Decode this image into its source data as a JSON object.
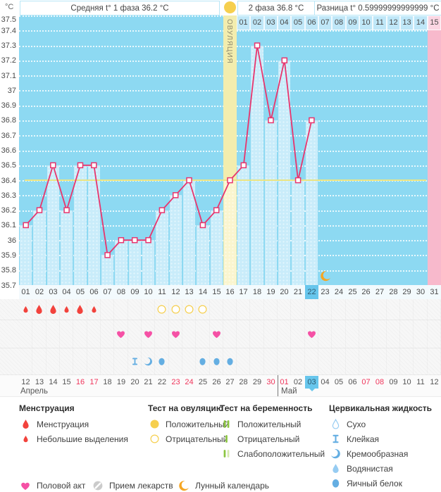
{
  "header": {
    "unit": "°C",
    "phase1_label": "Средняя t° 1 фаза 36.2 °C",
    "phase2_label": "2 фаза 36.8 °C",
    "diff_label": "Разница t° 0.59999999999999 °C"
  },
  "chart_data": {
    "type": "line",
    "ylabel_unit": "°C",
    "ylim": [
      35.7,
      37.5
    ],
    "ytick_step": 0.1,
    "yticks": [
      "37.5",
      "37.4",
      "37.3",
      "37.2",
      "37.1",
      "37",
      "36.9",
      "36.8",
      "36.7",
      "36.6",
      "36.5",
      "36.4",
      "36.3",
      "36.2",
      "36.1",
      "36",
      "35.9",
      "35.8",
      "35.7"
    ],
    "grid": "dotted-horizontal",
    "cycle_days": 31,
    "bottom_day_labels": [
      "01",
      "02",
      "03",
      "04",
      "05",
      "06",
      "07",
      "08",
      "09",
      "10",
      "11",
      "12",
      "13",
      "14",
      "15",
      "16",
      "17",
      "18",
      "19",
      "20",
      "21",
      "22",
      "23",
      "24",
      "25",
      "26",
      "27",
      "28",
      "29",
      "30",
      "31"
    ],
    "top_dpo_labels": [
      "01",
      "02",
      "03",
      "04",
      "05",
      "06",
      "07",
      "08",
      "09",
      "10",
      "11",
      "12",
      "13",
      "14",
      "15"
    ],
    "ovulation": {
      "day": 16,
      "label": "ОВУЛЯЦИЯ"
    },
    "coverline_temp": 36.4,
    "today_cycle_day": 22,
    "expected_period_cycle_day": 31,
    "moon_marker_day": 23,
    "temperatures": [
      {
        "day": 1,
        "temp": 36.1
      },
      {
        "day": 2,
        "temp": 36.2
      },
      {
        "day": 3,
        "temp": 36.5
      },
      {
        "day": 4,
        "temp": 36.2
      },
      {
        "day": 5,
        "temp": 36.5
      },
      {
        "day": 6,
        "temp": 36.5
      },
      {
        "day": 7,
        "temp": 35.9
      },
      {
        "day": 8,
        "temp": 36.0
      },
      {
        "day": 9,
        "temp": 36.0
      },
      {
        "day": 10,
        "temp": 36.0
      },
      {
        "day": 11,
        "temp": 36.2
      },
      {
        "day": 12,
        "temp": 36.3
      },
      {
        "day": 13,
        "temp": 36.4
      },
      {
        "day": 14,
        "temp": 36.1
      },
      {
        "day": 15,
        "temp": 36.2
      },
      {
        "day": 16,
        "temp": 36.4
      },
      {
        "day": 17,
        "temp": 36.5
      },
      {
        "day": 18,
        "temp": 37.3
      },
      {
        "day": 19,
        "temp": 36.8
      },
      {
        "day": 20,
        "temp": 37.2
      },
      {
        "day": 21,
        "temp": 36.4
      },
      {
        "day": 22,
        "temp": 36.8
      }
    ]
  },
  "events": {
    "menstruation": [
      {
        "day": 1,
        "intensity": "spotting"
      },
      {
        "day": 2,
        "intensity": "full"
      },
      {
        "day": 3,
        "intensity": "full"
      },
      {
        "day": 4,
        "intensity": "spotting"
      },
      {
        "day": 5,
        "intensity": "full"
      },
      {
        "day": 6,
        "intensity": "spotting"
      }
    ],
    "ovulation_test_negative_days": [
      11,
      12,
      13,
      14
    ],
    "ovulation_test_positive_day": 16,
    "intercourse_days": [
      8,
      10,
      12,
      15,
      22
    ],
    "cervical_fluid": [
      {
        "day": 9,
        "type": "sticky"
      },
      {
        "day": 10,
        "type": "creamy"
      },
      {
        "day": 11,
        "type": "eggwhite"
      },
      {
        "day": 14,
        "type": "eggwhite"
      },
      {
        "day": 15,
        "type": "eggwhite"
      },
      {
        "day": 16,
        "type": "eggwhite"
      }
    ]
  },
  "calendar": {
    "months": [
      {
        "name": "Апрель",
        "start_index": 0
      },
      {
        "name": "Май",
        "start_index": 19
      }
    ],
    "dates": [
      {
        "label": "12"
      },
      {
        "label": "13"
      },
      {
        "label": "14"
      },
      {
        "label": "15"
      },
      {
        "label": "16",
        "weekend": true
      },
      {
        "label": "17",
        "weekend": true
      },
      {
        "label": "18"
      },
      {
        "label": "19"
      },
      {
        "label": "20"
      },
      {
        "label": "21"
      },
      {
        "label": "22"
      },
      {
        "label": "23",
        "weekend": true
      },
      {
        "label": "24",
        "weekend": true
      },
      {
        "label": "25"
      },
      {
        "label": "26"
      },
      {
        "label": "27"
      },
      {
        "label": "28"
      },
      {
        "label": "29"
      },
      {
        "label": "30",
        "weekend": true
      },
      {
        "label": "01",
        "weekend": true
      },
      {
        "label": "02"
      },
      {
        "label": "03",
        "today": true
      },
      {
        "label": "04"
      },
      {
        "label": "05"
      },
      {
        "label": "06"
      },
      {
        "label": "07",
        "weekend": true
      },
      {
        "label": "08",
        "weekend": true
      },
      {
        "label": "09"
      },
      {
        "label": "10"
      },
      {
        "label": "11"
      },
      {
        "label": "12"
      }
    ]
  },
  "legend": {
    "menstruation": {
      "title": "Менструация",
      "items": [
        {
          "icon": "drop-large",
          "label": "Менструация"
        },
        {
          "icon": "drop-small",
          "label": "Небольшие выделения"
        }
      ]
    },
    "ovulation_test": {
      "title": "Тест на овуляцию",
      "items": [
        {
          "icon": "circle-filled",
          "label": "Положительный"
        },
        {
          "icon": "circle-open",
          "label": "Отрицательный"
        }
      ]
    },
    "pregnancy_test": {
      "title": "Тест на беременность",
      "items": [
        {
          "icon": "bars-two",
          "label": "Положительный"
        },
        {
          "icon": "bar-one",
          "label": "Отрицательный"
        },
        {
          "icon": "bars-weak",
          "label": "Слабоположительный"
        }
      ]
    },
    "cervical": {
      "title": "Цервикальная жидкость",
      "items": [
        {
          "icon": "drop-outline",
          "label": "Сухо"
        },
        {
          "icon": "sticky",
          "label": "Клейкая"
        },
        {
          "icon": "creamy",
          "label": "Кремообразная"
        },
        {
          "icon": "watery",
          "label": "Водянистая"
        },
        {
          "icon": "eggwhite",
          "label": "Яичный белок"
        }
      ]
    },
    "extra": [
      {
        "icon": "heart",
        "label": "Половой акт"
      },
      {
        "icon": "pill",
        "label": "Прием лекарств"
      },
      {
        "icon": "moon",
        "label": "Лунный календарь"
      }
    ]
  },
  "colors": {
    "chart_bg": "#8dd9f2",
    "bar_fill": "#c9ecfa",
    "bar_fill_ovulation": "#faf5cf",
    "ovulation_band": "#f3edae",
    "expected_period_pink": "#f8b9cc",
    "expected_period_cell": "#fbd6e3",
    "dpo_cell": "#bfe7f8",
    "today_highlight": "#67c6ec",
    "coverline": "#ebe583",
    "temp_line": "#e8356d",
    "menstruation_red": "#f2423c",
    "test_yellow": "#f6cf4e",
    "heart_pink": "#f551a5",
    "cervical_blue": "#64aee2",
    "cervical_light": "#96ccf2",
    "moon_orange": "#f5a623",
    "pregnancy_green": "#8bc540",
    "pregnancy_green_pale": "#d6e9ae",
    "weekend_red": "#f0365c",
    "pill_gray": "#cbcbcb"
  }
}
